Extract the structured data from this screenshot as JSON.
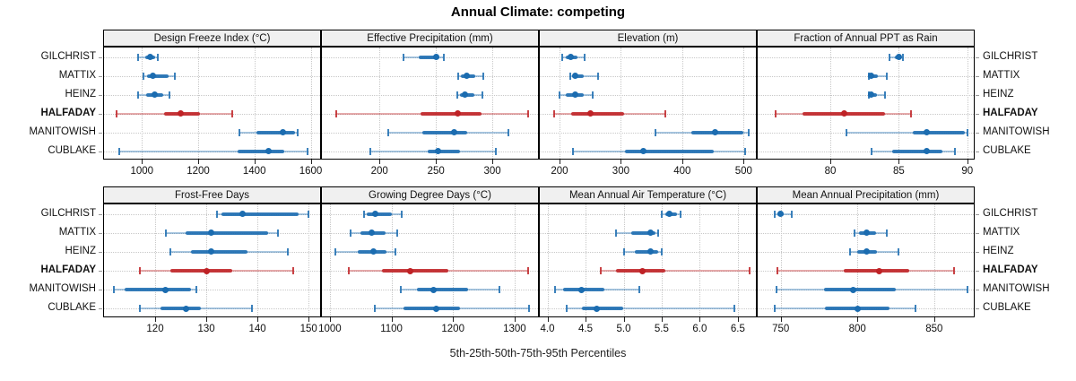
{
  "title": "Annual Climate: competing",
  "caption": "5th-25th-50th-75th-95th Percentiles",
  "highlight_site": "HALFADAY",
  "colors": {
    "series": "#1b6cb0",
    "highlight": "#bf2226",
    "grid": "#c8c8c8",
    "panel_header_bg": "#f0f0f0",
    "border": "#000000"
  },
  "chart_data": {
    "type": "scatter",
    "subtype": "lattice-percentile-dotplot",
    "layout": {
      "rows": 2,
      "cols": 4
    },
    "legend_position": "none",
    "grid": "dotted",
    "percentiles": [
      5,
      25,
      50,
      75,
      95
    ],
    "sites": [
      "GILCHRIST",
      "MATTIX",
      "HEINZ",
      "HALFADAY",
      "MANITOWISH",
      "CUBLAKE"
    ],
    "panels": [
      {
        "title": "Design Freeze Index (°C)",
        "xlim": [
          865,
          1640
        ],
        "ticks": [
          1000,
          1200,
          1400,
          1600
        ],
        "tick_labels": [
          "1000",
          "1200",
          "1400",
          "1600"
        ],
        "series": {
          "GILCHRIST": [
            985,
            1010,
            1030,
            1046,
            1056
          ],
          "MATTIX": [
            1006,
            1019,
            1040,
            1094,
            1118
          ],
          "HEINZ": [
            985,
            1015,
            1044,
            1075,
            1099
          ],
          "HALFADAY": [
            908,
            1078,
            1139,
            1205,
            1322
          ],
          "MANITOWISH": [
            1348,
            1407,
            1500,
            1545,
            1553
          ],
          "CUBLAKE": [
            920,
            1340,
            1449,
            1505,
            1590
          ]
        }
      },
      {
        "title": "Effective Precipitation (mm)",
        "xlim": [
          149,
          342
        ],
        "ticks": [
          200,
          250,
          300
        ],
        "tick_labels": [
          "200",
          "250",
          "300"
        ],
        "series": {
          "GILCHRIST": [
            221,
            235,
            250,
            253,
            257
          ],
          "MATTIX": [
            270,
            272,
            277,
            285,
            292
          ],
          "HEINZ": [
            269,
            271,
            276,
            284,
            291
          ],
          "HALFADAY": [
            162,
            236,
            269,
            290,
            332
          ],
          "MANITOWISH": [
            208,
            238,
            266,
            278,
            314
          ],
          "CUBLAKE": [
            192,
            243,
            252,
            271,
            303
          ]
        }
      },
      {
        "title": "Elevation (m)",
        "xlim": [
          168,
          523
        ],
        "ticks": [
          200,
          300,
          400,
          500
        ],
        "tick_labels": [
          "200",
          "300",
          "400",
          "500"
        ],
        "series": {
          "GILCHRIST": [
            205,
            210,
            218,
            229,
            241
          ],
          "MATTIX": [
            217,
            220,
            225,
            240,
            263
          ],
          "HEINZ": [
            200,
            210,
            225,
            240,
            254
          ],
          "HALFADAY": [
            191,
            219,
            250,
            305,
            372
          ],
          "MANITOWISH": [
            357,
            415,
            454,
            500,
            509
          ],
          "CUBLAKE": [
            222,
            307,
            336,
            451,
            503
          ]
        }
      },
      {
        "title": "Fraction of Annual PPT as Rain",
        "xlim": [
          74.7,
          90.6
        ],
        "ticks": [
          80,
          85,
          90
        ],
        "tick_labels": [
          "80",
          "85",
          "90"
        ],
        "series": {
          "GILCHRIST": [
            84.3,
            84.7,
            85.0,
            85.2,
            85.3
          ],
          "MATTIX": [
            82.8,
            82.9,
            83.0,
            83.5,
            84.1
          ],
          "HEINZ": [
            82.8,
            82.9,
            83.0,
            83.4,
            84.0
          ],
          "HALFADAY": [
            76.0,
            78.0,
            81.0,
            84.0,
            85.9
          ],
          "MANITOWISH": [
            81.2,
            86.0,
            87.0,
            89.8,
            90.0
          ],
          "CUBLAKE": [
            83.0,
            84.5,
            87.0,
            88.2,
            89.1
          ]
        }
      },
      {
        "title": "Frost-Free Days",
        "xlim": [
          110,
          152.6
        ],
        "ticks": [
          120,
          130,
          140,
          150
        ],
        "tick_labels": [
          "120",
          "130",
          "140",
          "150"
        ],
        "series": {
          "GILCHRIST": [
            132,
            133,
            137,
            148,
            150
          ],
          "MATTIX": [
            122,
            126,
            131,
            142,
            144
          ],
          "HEINZ": [
            123,
            127,
            131,
            138,
            146
          ],
          "HALFADAY": [
            117,
            123,
            130,
            135,
            147
          ],
          "MANITOWISH": [
            112,
            114,
            122,
            127,
            128
          ],
          "CUBLAKE": [
            117,
            121,
            126,
            129,
            139
          ]
        }
      },
      {
        "title": "Growing Degree Days (°C)",
        "xlim": [
          987,
          1341
        ],
        "ticks": [
          1000,
          1100,
          1200,
          1300
        ],
        "tick_labels": [
          "1000",
          "1100",
          "1200",
          "1300"
        ],
        "series": {
          "GILCHRIST": [
            1055,
            1060,
            1074,
            1100,
            1117
          ],
          "MATTIX": [
            1033,
            1050,
            1068,
            1090,
            1110
          ],
          "HEINZ": [
            1009,
            1045,
            1071,
            1092,
            1106
          ],
          "HALFADAY": [
            1031,
            1085,
            1131,
            1192,
            1322
          ],
          "MANITOWISH": [
            1115,
            1141,
            1168,
            1224,
            1276
          ],
          "CUBLAKE": [
            1073,
            1119,
            1172,
            1212,
            1323
          ]
        }
      },
      {
        "title": "Mean Annual Air Temperature (°C)",
        "xlim": [
          3.9,
          6.76
        ],
        "ticks": [
          4.0,
          4.5,
          5.0,
          5.5,
          6.0,
          6.5
        ],
        "tick_labels": [
          "4.0",
          "4.5",
          "5.0",
          "5.5",
          "6.0",
          "6.5"
        ],
        "series": {
          "GILCHRIST": [
            5.5,
            5.55,
            5.6,
            5.7,
            5.75
          ],
          "MATTIX": [
            4.9,
            5.1,
            5.35,
            5.42,
            5.45
          ],
          "HEINZ": [
            5.0,
            5.15,
            5.35,
            5.45,
            5.5
          ],
          "HALFADAY": [
            4.7,
            4.9,
            5.25,
            5.55,
            6.65
          ],
          "MANITOWISH": [
            4.1,
            4.2,
            4.45,
            4.75,
            5.2
          ],
          "CUBLAKE": [
            4.25,
            4.45,
            4.65,
            5.0,
            6.45
          ]
        }
      },
      {
        "title": "Mean Annual Precipitation (mm)",
        "xlim": [
          735,
          877
        ],
        "ticks": [
          750,
          800,
          850
        ],
        "tick_labels": [
          "750",
          "800",
          "850"
        ],
        "series": {
          "GILCHRIST": [
            746,
            748,
            750,
            752,
            757
          ],
          "MATTIX": [
            798,
            801,
            806,
            812,
            819
          ],
          "HEINZ": [
            795,
            800,
            806,
            813,
            827
          ],
          "HALFADAY": [
            748,
            791,
            814,
            834,
            863
          ],
          "MANITOWISH": [
            747,
            778,
            797,
            825,
            872
          ],
          "CUBLAKE": [
            746,
            779,
            800,
            821,
            838
          ]
        }
      }
    ]
  }
}
